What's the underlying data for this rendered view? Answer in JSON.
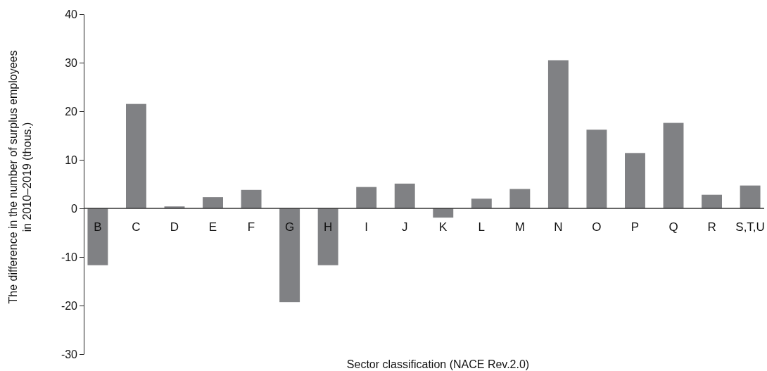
{
  "chart_data": {
    "type": "bar",
    "xlabel": "Sector classification (NACE Rev.2.0)",
    "ylabel": "The difference in the number of surplus employees\nin 2010–2019 (thous.)",
    "categories": [
      "B",
      "C",
      "D",
      "E",
      "F",
      "G",
      "H",
      "I",
      "J",
      "K",
      "L",
      "M",
      "N",
      "O",
      "P",
      "Q",
      "R",
      "S,T,U"
    ],
    "values": [
      -11.7,
      21.5,
      0.4,
      2.3,
      3.8,
      -19.3,
      -11.7,
      4.4,
      5.1,
      -1.9,
      2.0,
      4.0,
      30.5,
      16.2,
      11.4,
      17.6,
      2.8,
      4.7
    ],
    "color": "#808184",
    "ylim": [
      -30,
      40
    ],
    "yticks": [
      -30,
      -20,
      -10,
      0,
      10,
      20,
      30,
      40
    ],
    "grid": false
  }
}
